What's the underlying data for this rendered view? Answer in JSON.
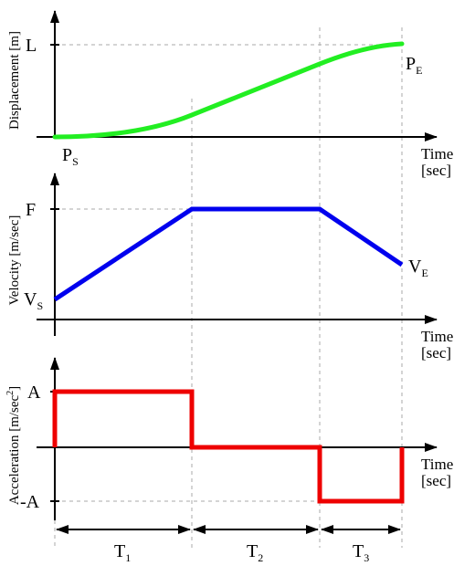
{
  "panels": {
    "displacement": {
      "ylabel": "Displacement [m]",
      "ytick": "L",
      "xlabel_line1": "Time",
      "xlabel_line2": "[sec]",
      "start_main": "P",
      "start_sub": "S",
      "end_main": "P",
      "end_sub": "E",
      "color": "#22ee22"
    },
    "velocity": {
      "ylabel": "Velocity [m/sec]",
      "ytick": "F",
      "xlabel_line1": "Time",
      "xlabel_line2": "[sec]",
      "start_main": "V",
      "start_sub": "S",
      "end_main": "V",
      "end_sub": "E",
      "color": "#0000ee"
    },
    "acceleration": {
      "ylabel_main": "Acceleration [m/sec",
      "ylabel_sup": "2",
      "ylabel_end": "]",
      "ytick_pos": "A",
      "ytick_neg": "-A",
      "xlabel_line1": "Time",
      "xlabel_line2": "[sec]",
      "color": "#ee0000"
    }
  },
  "intervals": [
    {
      "main": "T",
      "sub": "1"
    },
    {
      "main": "T",
      "sub": "2"
    },
    {
      "main": "T",
      "sub": "3"
    }
  ]
}
